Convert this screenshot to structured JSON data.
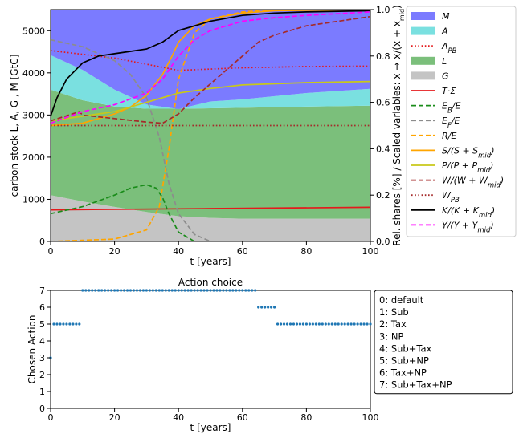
{
  "chart_data": [
    {
      "type": "area",
      "xlabel": "t [years]",
      "ylabel_left": "carbon stock L, A, G , M [GtC]",
      "ylabel_right": "Rel. shares [%] / Scaled variables: x → x/(x + x_mid)",
      "x_ticks": [
        0,
        20,
        40,
        60,
        80,
        100
      ],
      "y_left_ticks": [
        0,
        1000,
        2000,
        3000,
        4000,
        5000
      ],
      "y_right_ticks": [
        "0.0",
        "0.2",
        "0.4",
        "0.6",
        "0.8",
        "1.0"
      ],
      "xlim": [
        0,
        100
      ],
      "ylim_left": [
        0,
        5500
      ],
      "ylim_right": [
        0,
        1
      ],
      "legend_position": "right-outside",
      "stack": {
        "x": [
          0,
          10,
          20,
          30,
          40,
          50,
          60,
          80,
          100
        ],
        "G": [
          1100,
          950,
          820,
          700,
          600,
          560,
          540,
          540,
          540
        ],
        "L": [
          2500,
          2400,
          2380,
          2450,
          2550,
          2600,
          2630,
          2660,
          2680
        ],
        "A": [
          820,
          720,
          400,
          100,
          -10,
          160,
          200,
          320,
          400
        ],
        "M": [
          1080,
          1430,
          1900,
          2250,
          2410,
          2180,
          2130,
          1980,
          1880
        ]
      },
      "series": [
        {
          "key": "M",
          "label": "M",
          "kind": "area",
          "color": "#7b7bff"
        },
        {
          "key": "A",
          "label": "A",
          "kind": "area",
          "color": "#7ae0e0"
        },
        {
          "key": "APB",
          "label": "A_PB",
          "kind": "line",
          "dash": "dotted",
          "color": "#e41a1c",
          "x": [
            0,
            20,
            40,
            60,
            80,
            100
          ],
          "y": [
            4530,
            4350,
            4060,
            4120,
            4150,
            4160
          ]
        },
        {
          "key": "L",
          "label": "L",
          "kind": "area",
          "color": "#7bbf7b"
        },
        {
          "key": "G",
          "label": "G",
          "kind": "area",
          "color": "#c4c4c4"
        },
        {
          "key": "TS",
          "label": "T·Σ",
          "kind": "line",
          "color": "#e41a1c",
          "x": [
            0,
            50,
            100
          ],
          "y": [
            750,
            780,
            810
          ]
        },
        {
          "key": "EB",
          "label": "E_B/E",
          "kind": "line",
          "dash": "dashed",
          "color": "#1a8c1a",
          "axis": "right",
          "x": [
            0,
            10,
            20,
            25,
            30,
            33,
            35,
            37,
            40,
            45,
            100
          ],
          "y": [
            0.12,
            0.15,
            0.2,
            0.23,
            0.245,
            0.23,
            0.19,
            0.12,
            0.04,
            0.0,
            0.0
          ]
        },
        {
          "key": "EF",
          "label": "E_F/E",
          "kind": "line",
          "dash": "dashed",
          "color": "#8c8c8c",
          "axis": "right",
          "x": [
            0,
            10,
            20,
            25,
            30,
            34,
            37,
            40,
            45,
            50,
            100
          ],
          "y": [
            0.87,
            0.84,
            0.78,
            0.72,
            0.62,
            0.45,
            0.25,
            0.12,
            0.03,
            0.0,
            0.0
          ]
        },
        {
          "key": "RE",
          "label": "R/E",
          "kind": "line",
          "dash": "dashed",
          "color": "#ffa500",
          "axis": "right",
          "x": [
            0,
            20,
            30,
            34,
            37,
            40,
            45,
            50,
            60,
            70,
            100
          ],
          "y": [
            0.0,
            0.01,
            0.05,
            0.15,
            0.4,
            0.7,
            0.9,
            0.96,
            0.99,
            1.0,
            1.0
          ]
        },
        {
          "key": "S",
          "label": "S/(S + S_mid)",
          "kind": "line",
          "color": "#ffa500",
          "axis": "right",
          "x": [
            0,
            10,
            15,
            20,
            25,
            30,
            35,
            38,
            40,
            45,
            50,
            60,
            70,
            100
          ],
          "y": [
            0.5,
            0.51,
            0.53,
            0.55,
            0.58,
            0.63,
            0.72,
            0.8,
            0.86,
            0.93,
            0.96,
            0.985,
            0.995,
            1.0
          ]
        },
        {
          "key": "P",
          "label": "P/(P + P_mid)",
          "kind": "line",
          "color": "#c8c81a",
          "axis": "right",
          "x": [
            0,
            10,
            20,
            30,
            40,
            50,
            60,
            80,
            100
          ],
          "y": [
            0.52,
            0.54,
            0.56,
            0.6,
            0.64,
            0.66,
            0.675,
            0.685,
            0.69
          ]
        },
        {
          "key": "W",
          "label": "W/(W + W_mid)",
          "kind": "line",
          "dash": "dashed",
          "color": "#a52a2a",
          "axis": "right",
          "x": [
            0,
            9,
            10,
            20,
            30,
            35,
            40,
            45,
            50,
            60,
            65,
            70,
            80,
            100
          ],
          "y": [
            0.52,
            0.56,
            0.545,
            0.53,
            0.515,
            0.51,
            0.55,
            0.62,
            0.68,
            0.8,
            0.86,
            0.89,
            0.93,
            0.97
          ]
        },
        {
          "key": "WPB",
          "label": "W_PB",
          "kind": "line",
          "dash": "dotted",
          "color": "#a52a2a",
          "axis": "right",
          "x": [
            0,
            100
          ],
          "y": [
            0.5,
            0.5
          ]
        },
        {
          "key": "K",
          "label": "K/(K + K_mid)",
          "kind": "line",
          "color": "#000000",
          "axis": "right",
          "x": [
            0,
            2,
            5,
            10,
            15,
            20,
            25,
            30,
            35,
            40,
            50,
            60,
            70,
            80,
            100
          ],
          "y": [
            0.54,
            0.62,
            0.7,
            0.77,
            0.8,
            0.81,
            0.82,
            0.83,
            0.86,
            0.91,
            0.95,
            0.975,
            0.985,
            0.99,
            0.995
          ]
        },
        {
          "key": "Y",
          "label": "Y/(Y + Y_mid)",
          "kind": "line",
          "dash": "dashed",
          "color": "#ff00ff",
          "axis": "right",
          "x": [
            0,
            10,
            20,
            30,
            35,
            40,
            45,
            50,
            60,
            70,
            80,
            100
          ],
          "y": [
            0.51,
            0.56,
            0.59,
            0.64,
            0.7,
            0.8,
            0.87,
            0.91,
            0.95,
            0.965,
            0.975,
            0.99
          ]
        }
      ]
    },
    {
      "type": "scatter",
      "title": "Action choice",
      "xlabel": "t [years]",
      "ylabel": "Chosen Action",
      "x_ticks": [
        0,
        20,
        40,
        60,
        80,
        100
      ],
      "y_ticks": [
        0,
        1,
        2,
        3,
        4,
        5,
        6,
        7
      ],
      "xlim": [
        0,
        100
      ],
      "ylim": [
        0,
        7
      ],
      "color": "#1f77b4",
      "segments": [
        {
          "x_from": 0,
          "x_to": 0,
          "y": 3
        },
        {
          "x_from": 1,
          "x_to": 9,
          "y": 5
        },
        {
          "x_from": 10,
          "x_to": 64,
          "y": 7
        },
        {
          "x_from": 65,
          "x_to": 70,
          "y": 6
        },
        {
          "x_from": 71,
          "x_to": 100,
          "y": 5
        }
      ],
      "legend_entries": [
        "0: default",
        "1: Sub",
        "2: Tax",
        "3: NP",
        "4: Sub+Tax",
        "5: Sub+NP",
        "6: Tax+NP",
        "7: Sub+Tax+NP"
      ]
    }
  ]
}
